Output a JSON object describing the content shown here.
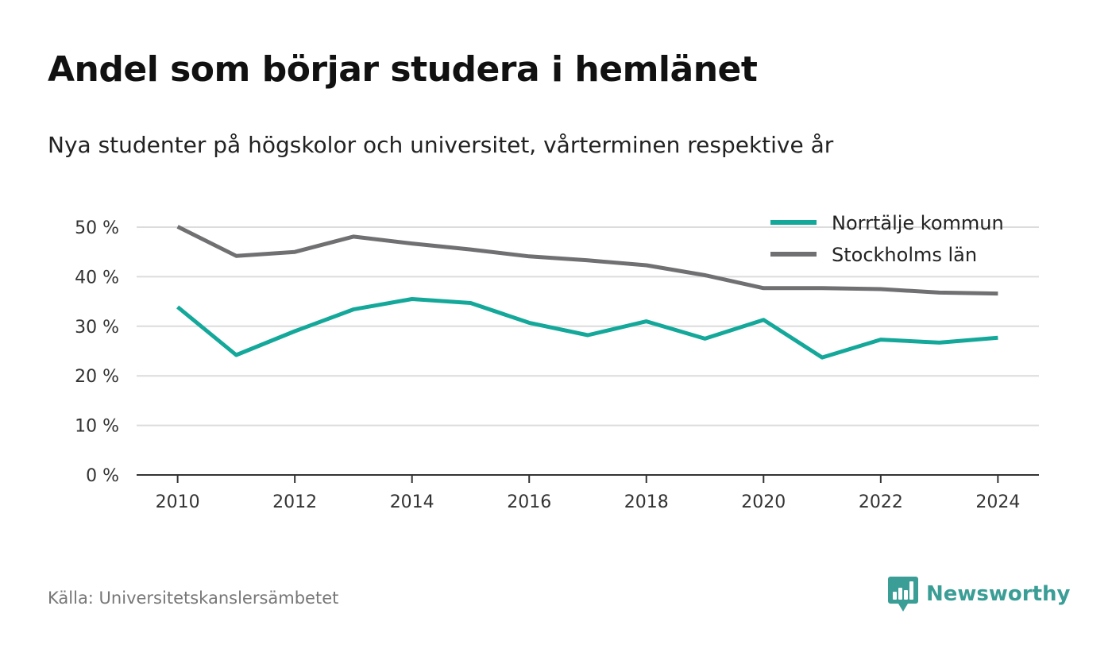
{
  "header": {
    "title": "Andel som börjar studera i hemlänet",
    "subtitle": "Nya studenter på högskolor och universitet, vårterminen respektive år"
  },
  "footer": {
    "source": "Källa: Universitetskanslersämbetet",
    "brand_name": "Newsworthy",
    "brand_icon": "bar-chart-speech-bubble-icon",
    "brand_color": "#3a9e96"
  },
  "chart_data": {
    "type": "line",
    "title": "Andel som börjar studera i hemlänet",
    "subtitle": "Nya studenter på högskolor och universitet, vårterminen respektive år",
    "xlabel": "",
    "ylabel": "",
    "x": [
      2010,
      2011,
      2012,
      2013,
      2014,
      2015,
      2016,
      2017,
      2018,
      2019,
      2020,
      2021,
      2022,
      2023,
      2024
    ],
    "x_ticks": [
      "2010",
      "2012",
      "2014",
      "2016",
      "2018",
      "2020",
      "2022",
      "2024"
    ],
    "y_ticks": [
      "0 %",
      "10 %",
      "20 %",
      "30 %",
      "40 %",
      "50 %"
    ],
    "ylim": [
      0,
      50
    ],
    "xlim": [
      2009.3,
      2024.7
    ],
    "grid": true,
    "legend_position": "top-right",
    "series": [
      {
        "name": "Norrtälje kommun",
        "color": "#14a89a",
        "values": [
          33.9,
          24.2,
          29.0,
          33.4,
          35.5,
          34.7,
          30.7,
          28.2,
          31.0,
          27.5,
          31.3,
          23.7,
          27.3,
          26.7,
          27.7
        ]
      },
      {
        "name": "Stockholms län",
        "color": "#707072",
        "values": [
          50.1,
          44.2,
          45.0,
          48.1,
          46.7,
          45.5,
          44.1,
          43.3,
          42.3,
          40.3,
          37.7,
          37.7,
          37.5,
          36.8,
          36.6
        ]
      }
    ]
  }
}
